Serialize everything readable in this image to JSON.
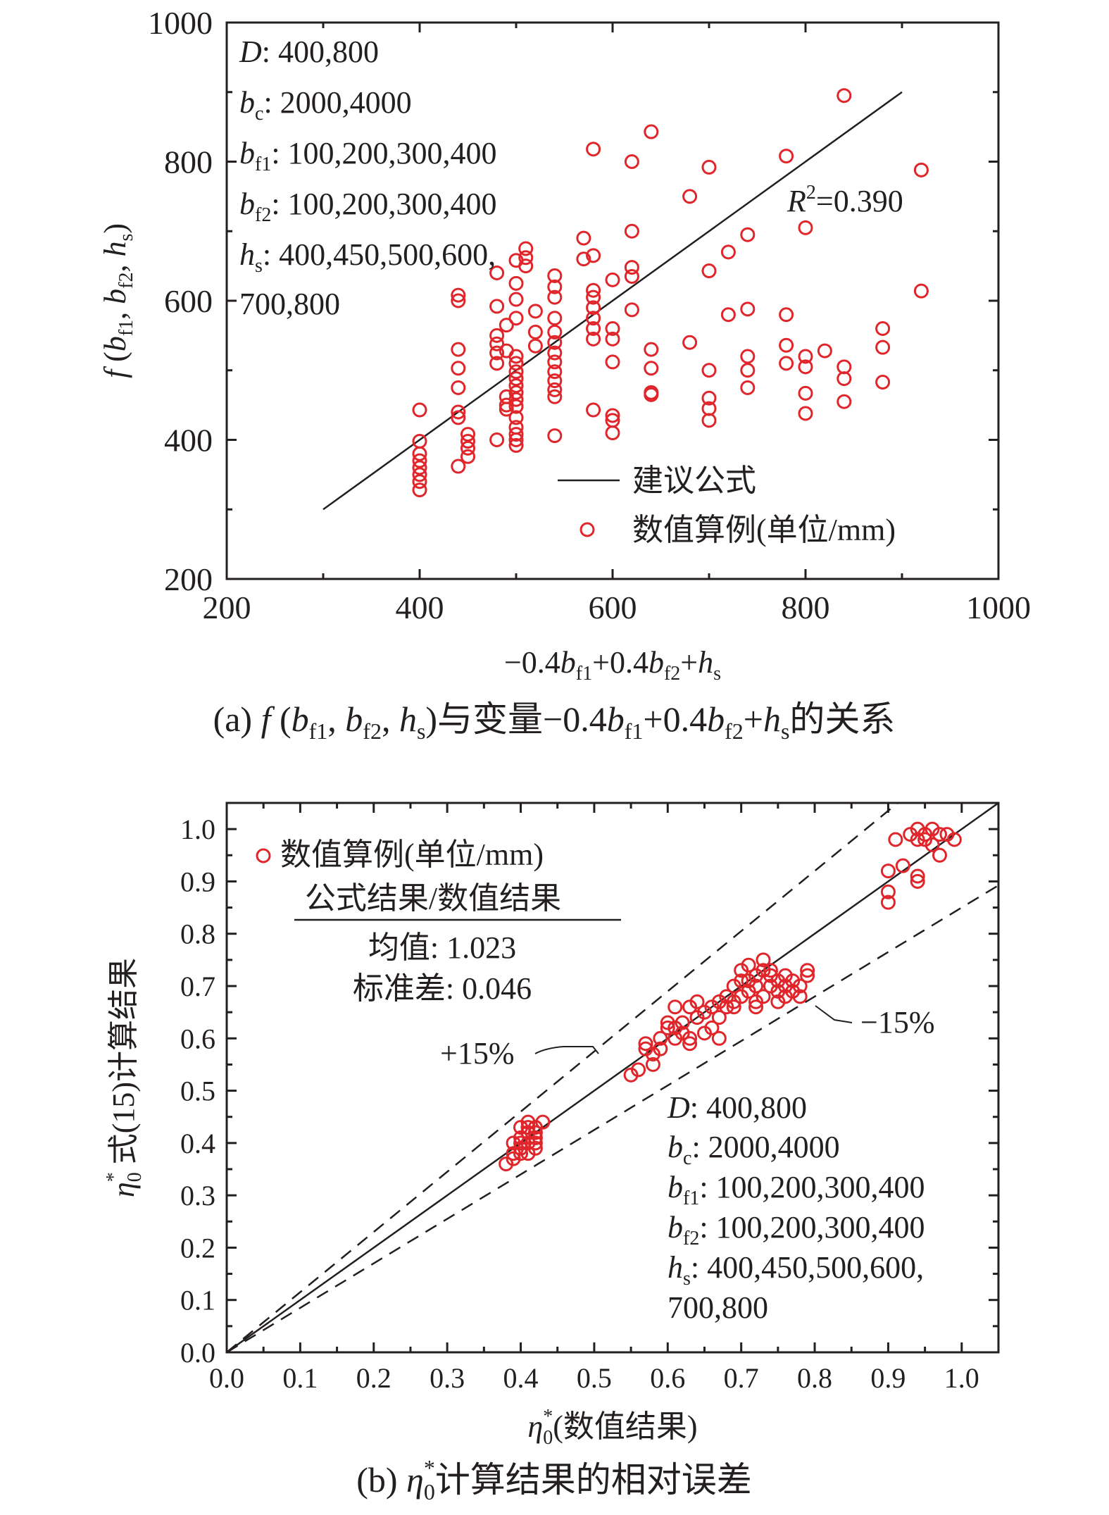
{
  "colors": {
    "axis": "#231f20",
    "marker": "#e0262a",
    "line": "#231f20"
  },
  "chart_data": [
    {
      "type": "scatter",
      "title": "(a) f (bf1, bf2, hs)与变量−0.4bf1+0.4bf2+hs的关系",
      "caption": {
        "prefix": "(a) ",
        "f": "f",
        "open": " (",
        "b": "b",
        "sub_f1": "f1",
        "comma": ", ",
        "sub_f2": "f2",
        "h": "h",
        "sub_s": "s",
        "close_text": ")与变量−0.4",
        "plus": "+0.4",
        "plus2": "+",
        "suffix": "的关系"
      },
      "xlabel": "−0.4bf1+0.4bf2+hs",
      "xlabel_parts": {
        "lead": "−0.4",
        "b": "b",
        "sub_f1": "f1",
        "mid": "+0.4",
        "sub_f2": "f2",
        "plus": "+",
        "h": "h",
        "sub_s": "s"
      },
      "ylabel": "f (bf1, bf2, hs)",
      "ylabel_parts": {
        "f": "f",
        "open": " (",
        "b": "b",
        "sub_f1": "f1",
        "comma": ", ",
        "sub_f2": "f2",
        "h": "h",
        "sub_s": "s",
        "close": ")"
      },
      "xlim": [
        200,
        1000
      ],
      "ylim": [
        200,
        1000
      ],
      "xticks": [
        200,
        400,
        600,
        800,
        1000
      ],
      "yticks": [
        200,
        400,
        600,
        800,
        1000
      ],
      "grid": false,
      "legend": {
        "position": "bottom-right",
        "line_label": "建议公式",
        "marker_label": "数值算例(单位/mm)"
      },
      "annotation_r2": {
        "R": "R",
        "sup": "2",
        "value": "=0.390"
      },
      "params": [
        {
          "var": "D",
          "sub": "",
          "value": ": 400,800"
        },
        {
          "var": "b",
          "sub": "c",
          "value": ": 2000,4000"
        },
        {
          "var": "b",
          "sub": "f1",
          "value": ": 100,200,300,400"
        },
        {
          "var": "b",
          "sub": "f2",
          "value": ": 100,200,300,400"
        },
        {
          "var": "h",
          "sub": "s",
          "value": ": 400,450,500,600,"
        },
        {
          "var": "",
          "sub": "",
          "value": "700,800"
        }
      ],
      "fit_line": {
        "x": [
          300,
          900
        ],
        "y": [
          300,
          900
        ]
      },
      "series": [
        {
          "name": "数值算例(单位/mm)",
          "points": [
            [
              400,
              443
            ],
            [
              400,
              398
            ],
            [
              400,
              380
            ],
            [
              400,
              370
            ],
            [
              400,
              360
            ],
            [
              400,
              350
            ],
            [
              400,
              340
            ],
            [
              400,
              328
            ],
            [
              440,
              608
            ],
            [
              440,
              600
            ],
            [
              440,
              530
            ],
            [
              440,
              503
            ],
            [
              440,
              475
            ],
            [
              440,
              440
            ],
            [
              440,
              432
            ],
            [
              440,
              362
            ],
            [
              450,
              408
            ],
            [
              450,
              398
            ],
            [
              450,
              388
            ],
            [
              450,
              376
            ],
            [
              480,
              640
            ],
            [
              480,
              592
            ],
            [
              480,
              550
            ],
            [
              480,
              538
            ],
            [
              480,
              525
            ],
            [
              480,
              510
            ],
            [
              480,
              400
            ],
            [
              490,
              565
            ],
            [
              490,
              528
            ],
            [
              490,
              462
            ],
            [
              490,
              450
            ],
            [
              490,
              444
            ],
            [
              500,
              658
            ],
            [
              500,
              625
            ],
            [
              500,
              602
            ],
            [
              500,
              575
            ],
            [
              500,
              520
            ],
            [
              500,
              510
            ],
            [
              500,
              498
            ],
            [
              500,
              488
            ],
            [
              500,
              478
            ],
            [
              500,
              468
            ],
            [
              500,
              458
            ],
            [
              500,
              448
            ],
            [
              500,
              432
            ],
            [
              500,
              418
            ],
            [
              500,
              408
            ],
            [
              500,
              400
            ],
            [
              500,
              392
            ],
            [
              510,
              675
            ],
            [
              510,
              662
            ],
            [
              510,
              650
            ],
            [
              520,
              585
            ],
            [
              520,
              555
            ],
            [
              520,
              535
            ],
            [
              540,
              636
            ],
            [
              540,
              620
            ],
            [
              540,
              605
            ],
            [
              540,
              575
            ],
            [
              540,
              555
            ],
            [
              540,
              540
            ],
            [
              540,
              525
            ],
            [
              540,
              512
            ],
            [
              540,
              498
            ],
            [
              540,
              485
            ],
            [
              540,
              472
            ],
            [
              540,
              462
            ],
            [
              540,
              406
            ],
            [
              570,
              690
            ],
            [
              570,
              660
            ],
            [
              580,
              818
            ],
            [
              580,
              665
            ],
            [
              580,
              615
            ],
            [
              580,
              605
            ],
            [
              580,
              590
            ],
            [
              580,
              575
            ],
            [
              580,
              560
            ],
            [
              580,
              545
            ],
            [
              580,
              443
            ],
            [
              600,
              630
            ],
            [
              600,
              560
            ],
            [
              600,
              545
            ],
            [
              600,
              512
            ],
            [
              600,
              435
            ],
            [
              600,
              428
            ],
            [
              600,
              410
            ],
            [
              620,
              800
            ],
            [
              620,
              700
            ],
            [
              620,
              648
            ],
            [
              620,
              635
            ],
            [
              620,
              587
            ],
            [
              640,
              843
            ],
            [
              640,
              530
            ],
            [
              640,
              503
            ],
            [
              640,
              468
            ],
            [
              640,
              465
            ],
            [
              680,
              750
            ],
            [
              680,
              540
            ],
            [
              700,
              792
            ],
            [
              700,
              643
            ],
            [
              700,
              500
            ],
            [
              700,
              460
            ],
            [
              700,
              445
            ],
            [
              700,
              428
            ],
            [
              720,
              670
            ],
            [
              720,
              580
            ],
            [
              740,
              695
            ],
            [
              740,
              588
            ],
            [
              740,
              520
            ],
            [
              740,
              500
            ],
            [
              740,
              475
            ],
            [
              780,
              808
            ],
            [
              780,
              580
            ],
            [
              780,
              536
            ],
            [
              780,
              510
            ],
            [
              800,
              705
            ],
            [
              800,
              520
            ],
            [
              800,
              505
            ],
            [
              800,
              467
            ],
            [
              800,
              438
            ],
            [
              820,
              528
            ],
            [
              840,
              895
            ],
            [
              840,
              505
            ],
            [
              840,
              488
            ],
            [
              840,
              455
            ],
            [
              880,
              560
            ],
            [
              880,
              533
            ],
            [
              880,
              483
            ],
            [
              920,
              788
            ],
            [
              920,
              614
            ]
          ]
        }
      ]
    },
    {
      "type": "scatter",
      "title": "(b) η0*计算结果的相对误差",
      "caption": {
        "prefix": "(b) ",
        "eta": "η",
        "sub0": "0",
        "sup": "*",
        "suffix": "计算结果的相对误差"
      },
      "xlabel": "η0*(数值结果)",
      "xlabel_parts": {
        "eta": "η",
        "sub0": "0",
        "sup": "*",
        "suffix": "(数值结果)"
      },
      "ylabel": "η0* 式(15)计算结果",
      "ylabel_parts": {
        "eta": "η",
        "sub0": "0",
        "sup": "*",
        "suffix": " 式(15)计算结果"
      },
      "xlim": [
        0,
        1.05
      ],
      "ylim": [
        0,
        1.05
      ],
      "xticks": [
        "0.0",
        "0.1",
        "0.2",
        "0.3",
        "0.4",
        "0.5",
        "0.6",
        "0.7",
        "0.8",
        "0.9",
        "1.0"
      ],
      "yticks": [
        "0.0",
        "0.1",
        "0.2",
        "0.3",
        "0.4",
        "0.5",
        "0.6",
        "0.7",
        "0.8",
        "0.9",
        "1.0"
      ],
      "grid": false,
      "legend": {
        "position": "top-left",
        "marker_label": "数值算例(单位/mm)"
      },
      "stats": {
        "header": "公式结果/数值结果",
        "mean": "均值: 1.023",
        "std": "标准差: 0.046"
      },
      "band_labels": {
        "upper": "+15%",
        "lower": "−15%"
      },
      "lines": {
        "equality_slope": 1.0,
        "upper_slope": 1.15,
        "lower_slope": 0.85
      },
      "params": [
        {
          "var": "D",
          "sub": "",
          "value": ": 400,800"
        },
        {
          "var": "b",
          "sub": "c",
          "value": ": 2000,4000"
        },
        {
          "var": "b",
          "sub": "f1",
          "value": ": 100,200,300,400"
        },
        {
          "var": "b",
          "sub": "f2",
          "value": ": 100,200,300,400"
        },
        {
          "var": "h",
          "sub": "s",
          "value": ": 400,450,500,600,"
        },
        {
          "var": "",
          "sub": "",
          "value": "700,800"
        }
      ],
      "series": [
        {
          "name": "数值算例(单位/mm)",
          "points": [
            [
              0.38,
              0.36
            ],
            [
              0.39,
              0.37
            ],
            [
              0.39,
              0.38
            ],
            [
              0.4,
              0.38
            ],
            [
              0.4,
              0.39
            ],
            [
              0.4,
              0.4
            ],
            [
              0.4,
              0.41
            ],
            [
              0.41,
              0.38
            ],
            [
              0.41,
              0.4
            ],
            [
              0.41,
              0.42
            ],
            [
              0.41,
              0.43
            ],
            [
              0.42,
              0.39
            ],
            [
              0.42,
              0.41
            ],
            [
              0.42,
              0.42
            ],
            [
              0.42,
              0.43
            ],
            [
              0.43,
              0.44
            ],
            [
              0.41,
              0.44
            ],
            [
              0.4,
              0.43
            ],
            [
              0.39,
              0.4
            ],
            [
              0.42,
              0.4
            ],
            [
              0.55,
              0.53
            ],
            [
              0.56,
              0.54
            ],
            [
              0.57,
              0.58
            ],
            [
              0.57,
              0.59
            ],
            [
              0.58,
              0.55
            ],
            [
              0.58,
              0.57
            ],
            [
              0.59,
              0.58
            ],
            [
              0.59,
              0.6
            ],
            [
              0.6,
              0.62
            ],
            [
              0.6,
              0.63
            ],
            [
              0.61,
              0.6
            ],
            [
              0.61,
              0.62
            ],
            [
              0.61,
              0.66
            ],
            [
              0.62,
              0.61
            ],
            [
              0.62,
              0.63
            ],
            [
              0.63,
              0.59
            ],
            [
              0.63,
              0.6
            ],
            [
              0.63,
              0.66
            ],
            [
              0.64,
              0.64
            ],
            [
              0.64,
              0.67
            ],
            [
              0.65,
              0.61
            ],
            [
              0.65,
              0.65
            ],
            [
              0.66,
              0.62
            ],
            [
              0.66,
              0.66
            ],
            [
              0.67,
              0.6
            ],
            [
              0.67,
              0.64
            ],
            [
              0.67,
              0.67
            ],
            [
              0.68,
              0.68
            ],
            [
              0.68,
              0.66
            ],
            [
              0.69,
              0.7
            ],
            [
              0.69,
              0.66
            ],
            [
              0.7,
              0.71
            ],
            [
              0.7,
              0.68
            ],
            [
              0.7,
              0.73
            ],
            [
              0.71,
              0.74
            ],
            [
              0.71,
              0.69
            ],
            [
              0.71,
              0.71
            ],
            [
              0.72,
              0.72
            ],
            [
              0.72,
              0.67
            ],
            [
              0.72,
              0.7
            ],
            [
              0.73,
              0.75
            ],
            [
              0.73,
              0.73
            ],
            [
              0.73,
              0.68
            ],
            [
              0.74,
              0.7
            ],
            [
              0.74,
              0.72
            ],
            [
              0.75,
              0.71
            ],
            [
              0.75,
              0.67
            ],
            [
              0.75,
              0.69
            ],
            [
              0.76,
              0.72
            ],
            [
              0.76,
              0.7
            ],
            [
              0.76,
              0.68
            ],
            [
              0.77,
              0.71
            ],
            [
              0.77,
              0.69
            ],
            [
              0.78,
              0.7
            ],
            [
              0.78,
              0.68
            ],
            [
              0.79,
              0.72
            ],
            [
              0.79,
              0.73
            ],
            [
              0.72,
              0.66
            ],
            [
              0.69,
              0.67
            ],
            [
              0.74,
              0.73
            ],
            [
              0.9,
              0.86
            ],
            [
              0.9,
              0.88
            ],
            [
              0.9,
              0.92
            ],
            [
              0.91,
              0.98
            ],
            [
              0.92,
              0.93
            ],
            [
              0.93,
              0.99
            ],
            [
              0.94,
              1.0
            ],
            [
              0.94,
              0.9
            ],
            [
              0.94,
              0.91
            ],
            [
              0.95,
              0.98
            ],
            [
              0.95,
              0.99
            ],
            [
              0.96,
              1.0
            ],
            [
              0.96,
              0.97
            ],
            [
              0.97,
              0.95
            ],
            [
              0.97,
              0.99
            ],
            [
              0.98,
              0.99
            ],
            [
              0.99,
              0.98
            ],
            [
              0.94,
              0.98
            ]
          ]
        }
      ]
    }
  ]
}
